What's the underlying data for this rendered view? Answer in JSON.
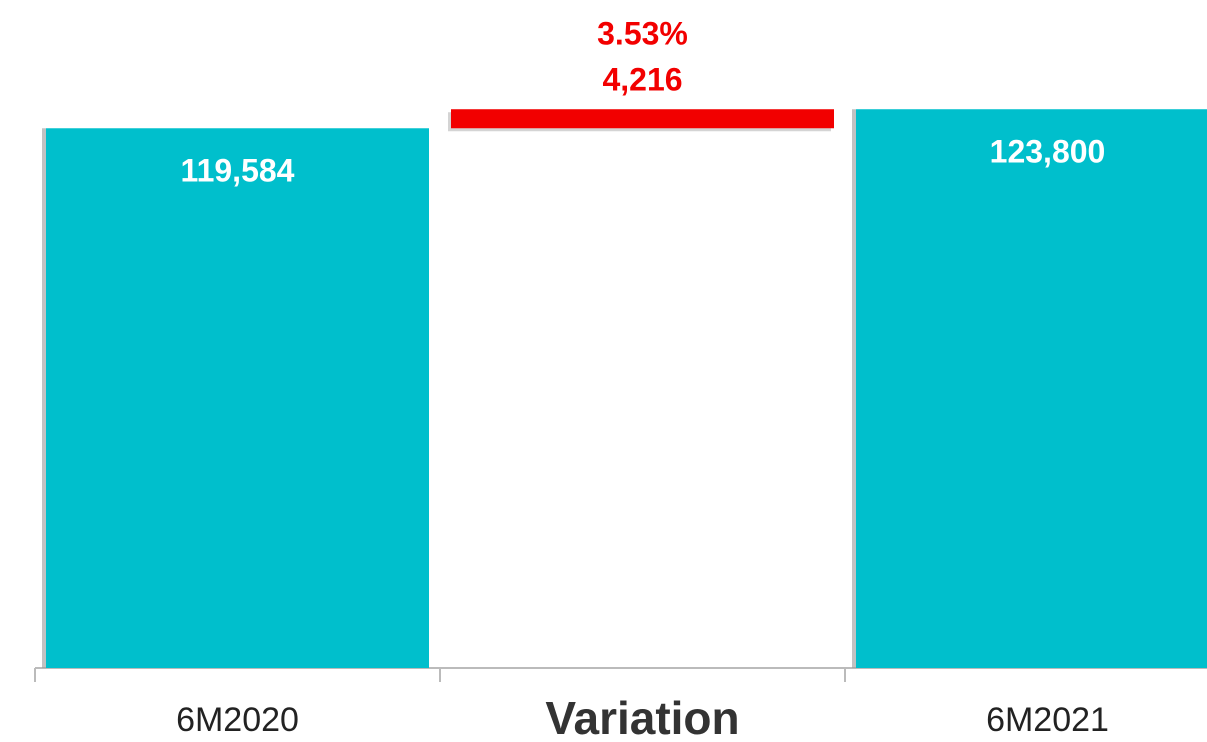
{
  "chart_data": {
    "type": "waterfall",
    "categories": [
      "6M2020",
      "Variation",
      "6M2021"
    ],
    "values": [
      119584,
      4216,
      123800
    ],
    "value_labels": [
      "119,584",
      "4,216",
      "123,800"
    ],
    "annotation": "3.53%",
    "colors": [
      "#00bfcc",
      "#f20000",
      "#00bfcc"
    ],
    "ylim": [
      0,
      148000
    ]
  }
}
